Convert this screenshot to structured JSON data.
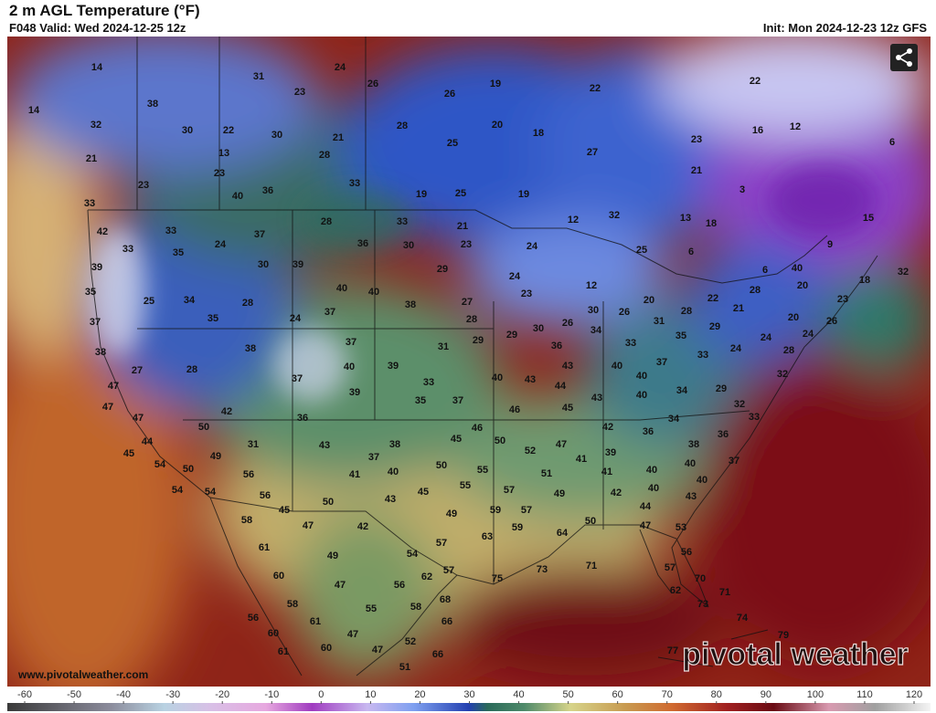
{
  "header": {
    "title": "2 m AGL Temperature (°F)",
    "subtitle": "F048 Valid: Wed 2024-12-25 12z",
    "init": "Init: Mon 2024-12-23 12z GFS"
  },
  "map": {
    "labels": [
      14,
      31,
      24,
      26,
      19,
      22,
      22,
      14,
      38,
      23,
      26,
      32,
      30,
      22,
      30,
      21,
      28,
      20,
      18,
      16,
      12,
      6,
      21,
      13,
      28,
      25,
      27,
      23,
      23,
      23,
      33,
      21,
      40,
      36,
      19,
      25,
      19,
      3,
      33,
      13,
      18,
      15,
      33,
      28,
      33,
      21,
      12,
      32,
      42,
      37,
      24,
      23,
      24,
      6,
      9,
      33,
      35,
      36,
      30,
      25,
      39,
      30,
      39,
      29,
      6,
      40,
      18,
      32,
      35,
      40,
      40,
      24,
      12,
      20,
      25,
      34,
      28,
      38,
      27,
      23,
      20,
      22,
      28,
      23,
      37,
      35,
      24,
      37,
      28,
      30,
      26,
      28,
      21,
      20,
      26,
      29,
      30,
      26,
      34,
      31,
      35,
      29,
      24,
      38,
      38,
      37,
      31,
      29,
      36,
      33,
      33,
      24,
      24,
      28,
      27,
      28,
      37,
      40,
      39,
      43,
      40,
      37,
      32,
      47,
      39,
      33,
      40,
      43,
      44,
      40,
      34,
      29,
      47,
      35,
      37,
      46,
      45,
      43,
      40,
      32,
      47,
      42,
      36,
      46,
      42,
      36,
      34,
      36,
      33,
      50,
      44,
      43,
      38,
      45,
      50,
      47,
      38,
      45,
      49,
      31,
      37,
      52,
      39,
      41,
      40,
      37,
      54,
      50,
      56,
      41,
      40,
      50,
      55,
      51,
      41,
      40,
      40,
      54,
      54,
      56,
      45,
      55,
      57,
      49,
      42,
      40,
      43,
      45,
      50,
      43,
      59,
      57,
      44,
      58,
      47,
      42,
      49,
      59,
      64,
      50,
      47,
      53,
      61,
      57,
      63,
      54,
      56,
      60,
      49,
      62,
      57,
      75,
      73,
      71,
      57,
      70,
      47,
      56,
      68,
      62,
      58,
      55,
      58,
      73,
      71,
      56,
      61,
      66,
      74,
      60,
      47,
      52,
      79,
      61,
      60,
      47,
      66,
      77,
      51
    ],
    "source": "www.pivotalweather.com",
    "logo": "pivotal weather"
  },
  "colorbar": {
    "ticks": [
      -60,
      -50,
      -40,
      -30,
      -20,
      -10,
      0,
      10,
      20,
      30,
      40,
      50,
      60,
      70,
      80,
      90,
      100,
      110,
      120
    ]
  }
}
